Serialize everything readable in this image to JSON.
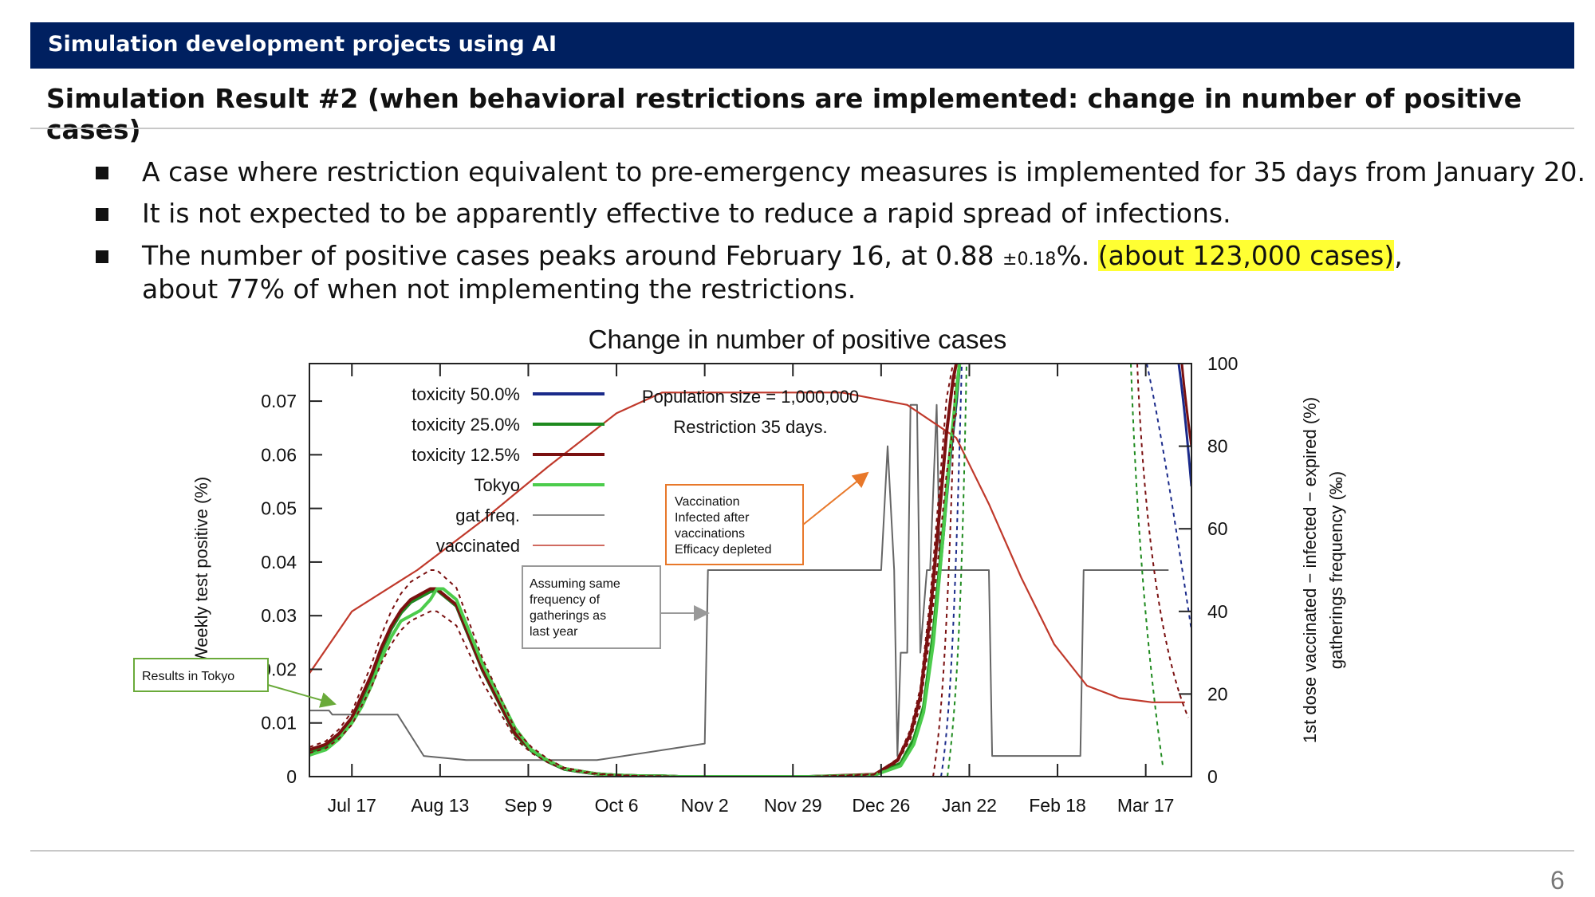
{
  "header": {
    "title": "Simulation development projects using AI"
  },
  "subtitle": "Simulation Result #2 (when behavioral restrictions are implemented: change in number of positive cases)",
  "bullets": {
    "b1": "A case where restriction equivalent to pre-emergency measures is implemented for 35 days from January 20.",
    "b2": "It is not expected to be apparently effective to reduce a rapid spread of infections.",
    "b3_part1": "The number of positive cases peaks around February 16, at 0.88 ",
    "b3_pm": "±0.18",
    "b3_part2": "%. ",
    "b3_highlight": "(about 123,000 cases)",
    "b3_part3": ",",
    "b3_line2": "about 77% of when not implementing the restrictions."
  },
  "page_number": "6",
  "colors": {
    "header_bg": "#002060",
    "toxicity50": "#1a2a8a",
    "toxicity25": "#1e8a1e",
    "toxicity125": "#7a1010",
    "tokyo": "#4ccc4c",
    "gatfreq": "#666666",
    "vaccinated": "#c0392b",
    "orange_box": "#e8782a",
    "green_box": "#6aaa3a",
    "highlight": "#ffff33"
  },
  "chart_data": {
    "type": "line",
    "title": "Change in number of positive cases",
    "ylabel_left": "Weekly test positive (%)",
    "ylabel_right_1": "1st dose vaccinated − infected − expired (%)",
    "ylabel_right_2": "gatherings frequency (‰)",
    "x_ticks": [
      "Jul 17",
      "Aug 13",
      "Sep 9",
      "Oct 6",
      "Nov 2",
      "Nov 29",
      "Dec 26",
      "Jan 22",
      "Feb 18",
      "Mar 17"
    ],
    "x_tick_days": [
      0,
      27,
      54,
      81,
      108,
      135,
      162,
      189,
      216,
      243
    ],
    "xlim_days": [
      -13,
      257
    ],
    "ylim_left": [
      0,
      0.077
    ],
    "yticks_left": [
      0,
      0.01,
      0.02,
      0.03,
      0.04,
      0.05,
      0.06,
      0.07
    ],
    "ytick_labels_left": [
      "0",
      "0.01",
      "0.02",
      "0.03",
      "0.04",
      "0.05",
      "0.06",
      "0.07"
    ],
    "ylim_right": [
      0,
      100
    ],
    "yticks_right": [
      0,
      20,
      40,
      60,
      80,
      100
    ],
    "ytick_labels_right": [
      "0",
      "20",
      "40",
      "60",
      "80",
      "100"
    ],
    "legend": [
      "toxicity 50.0%",
      "toxicity 25.0%",
      "toxicity 12.5%",
      "Tokyo",
      "gat.freq.",
      "vaccinated"
    ],
    "legend_note_1": "Population size = 1,000,000",
    "legend_note_2": "Restriction 35 days.",
    "annotations": {
      "tokyo_box": "Results in Tokyo",
      "gat_box": [
        "Assuming same",
        "frequency of",
        "gatherings as",
        "last year"
      ],
      "vacc_box": [
        "Vaccination",
        "Infected after",
        "vaccinations",
        "Efficacy depleted"
      ]
    },
    "series": [
      {
        "name": "Tokyo",
        "axis": "left",
        "x": [
          -13,
          -8,
          -4,
          0,
          3,
          6,
          9,
          12,
          15,
          18,
          21,
          24,
          26,
          28,
          30,
          32,
          34,
          36,
          40,
          45,
          50,
          55,
          60,
          65,
          70,
          75,
          80,
          85,
          90,
          95,
          100,
          110,
          120,
          140,
          160,
          168,
          172,
          175,
          178,
          181,
          183,
          185,
          186
        ],
        "y": [
          0.004,
          0.005,
          0.007,
          0.01,
          0.013,
          0.017,
          0.022,
          0.026,
          0.029,
          0.03,
          0.031,
          0.033,
          0.035,
          0.035,
          0.034,
          0.033,
          0.03,
          0.027,
          0.021,
          0.015,
          0.009,
          0.005,
          0.003,
          0.0015,
          0.001,
          0.0005,
          0.0003,
          0.0002,
          0.0001,
          0.0001,
          0,
          0,
          0,
          0,
          0.0003,
          0.002,
          0.006,
          0.012,
          0.025,
          0.045,
          0.06,
          0.072,
          0.077
        ]
      },
      {
        "name": "toxicity 12.5%",
        "axis": "left",
        "x": [
          -13,
          -8,
          -4,
          0,
          3,
          6,
          9,
          12,
          15,
          18,
          21,
          24,
          26,
          28,
          30,
          32,
          34,
          36,
          40,
          45,
          50,
          55,
          60,
          65,
          70,
          75,
          80,
          85,
          90,
          95,
          100,
          110,
          120,
          140,
          160,
          167,
          171,
          174,
          177,
          180,
          182,
          184,
          185
        ],
        "y": [
          0.005,
          0.006,
          0.008,
          0.011,
          0.015,
          0.019,
          0.024,
          0.028,
          0.031,
          0.033,
          0.034,
          0.035,
          0.035,
          0.034,
          0.033,
          0.032,
          0.029,
          0.026,
          0.02,
          0.014,
          0.008,
          0.005,
          0.003,
          0.0015,
          0.001,
          0.0005,
          0.0003,
          0.0002,
          0.0001,
          0.0001,
          0,
          0,
          0,
          0,
          0.0004,
          0.003,
          0.008,
          0.015,
          0.03,
          0.05,
          0.064,
          0.074,
          0.077
        ]
      },
      {
        "name": "toxicity 25.0%",
        "axis": "left",
        "x": [
          -13,
          -8,
          -4,
          0,
          3,
          6,
          9,
          12,
          15,
          18,
          21,
          24,
          26,
          28,
          30,
          32,
          34,
          36,
          40,
          45,
          50,
          55,
          60,
          65,
          70,
          75,
          80,
          85,
          90,
          95,
          100,
          110,
          120,
          140,
          160,
          168,
          172,
          175,
          178,
          181,
          183,
          185,
          186
        ],
        "y": [
          0.0045,
          0.0055,
          0.0075,
          0.0105,
          0.0145,
          0.0185,
          0.0235,
          0.0275,
          0.0305,
          0.0325,
          0.0335,
          0.0345,
          0.0348,
          0.0338,
          0.0328,
          0.0318,
          0.0288,
          0.0258,
          0.0198,
          0.0138,
          0.0078,
          0.0048,
          0.0028,
          0.0014,
          0.0009,
          0.0005,
          0.0003,
          0.0002,
          0.0001,
          0.0001,
          0,
          0,
          0,
          0,
          0.0003,
          0.0025,
          0.007,
          0.013,
          0.027,
          0.046,
          0.06,
          0.071,
          0.077
        ]
      },
      {
        "name": "toxicity 50.0%",
        "axis": "left",
        "x": [
          -13,
          -8,
          -4,
          0,
          3,
          6,
          9,
          12,
          15,
          18,
          21,
          24,
          26,
          28,
          30,
          32,
          34,
          36,
          40,
          45,
          50,
          55,
          60,
          65,
          70,
          75,
          80,
          85,
          90,
          95,
          100,
          110,
          120,
          140,
          160,
          168,
          172,
          175,
          178,
          181,
          183,
          185,
          186
        ],
        "y": [
          0.0045,
          0.0055,
          0.0075,
          0.0105,
          0.0145,
          0.0185,
          0.0235,
          0.0275,
          0.0305,
          0.0325,
          0.0335,
          0.0345,
          0.0348,
          0.0338,
          0.0328,
          0.0318,
          0.0288,
          0.0258,
          0.0198,
          0.0138,
          0.0078,
          0.0048,
          0.0028,
          0.0014,
          0.0009,
          0.0005,
          0.0003,
          0.0002,
          0.0001,
          0.0001,
          0,
          0,
          0,
          0,
          0.0003,
          0.0022,
          0.0065,
          0.0125,
          0.026,
          0.045,
          0.059,
          0.07,
          0.077
        ]
      },
      {
        "name": "gat.freq.",
        "axis": "right",
        "x": [
          -13,
          -7,
          -6,
          0,
          14,
          22,
          35,
          60,
          75,
          108,
          109,
          114,
          162,
          164,
          166,
          167,
          168,
          170,
          171,
          173,
          174,
          176,
          177,
          179,
          180,
          182,
          195,
          196,
          220,
          223,
          224,
          250
        ],
        "y": [
          16,
          16,
          15,
          15,
          15,
          5,
          4,
          4,
          4,
          8,
          50,
          50,
          50,
          80,
          50,
          5,
          30,
          30,
          90,
          90,
          30,
          50,
          50,
          90,
          50,
          50,
          50,
          5,
          5,
          5,
          50,
          50
        ]
      },
      {
        "name": "vaccinated",
        "axis": "right",
        "x": [
          -13,
          0,
          20,
          40,
          60,
          81,
          95,
          110,
          130,
          150,
          170,
          185,
          195,
          205,
          215,
          225,
          235,
          245,
          255
        ],
        "y": [
          25,
          40,
          50,
          62,
          75,
          88,
          93,
          93,
          93,
          93,
          90,
          82,
          66,
          48,
          32,
          22,
          19,
          18,
          18
        ]
      }
    ]
  }
}
